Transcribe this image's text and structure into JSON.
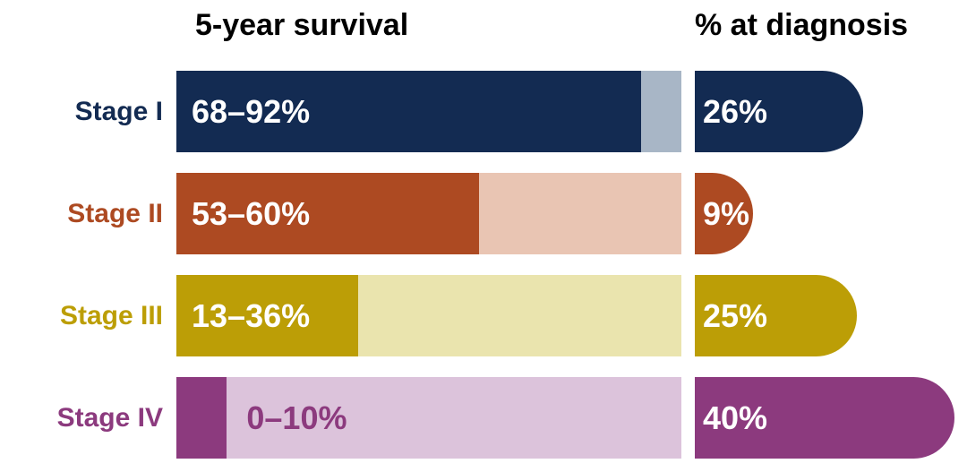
{
  "header": {
    "survival_title": "5-year survival",
    "diagnosis_title": "% at diagnosis"
  },
  "rows": [
    {
      "label": "Stage I",
      "survival_label": "68–92%",
      "survival_low": 68,
      "survival_high": 92,
      "diagnosis_label": "26%",
      "diagnosis_pct": 26,
      "solid_color": "#132b52",
      "light_color": "#a8b6c6",
      "value_text_position": "solid"
    },
    {
      "label": "Stage II",
      "survival_label": "53–60%",
      "survival_low": 53,
      "survival_high": 60,
      "diagnosis_label": "9%",
      "diagnosis_pct": 9,
      "solid_color": "#ad4a22",
      "light_color": "#e9c5b3",
      "value_text_position": "solid"
    },
    {
      "label": "Stage III",
      "survival_label": "13–36%",
      "survival_low": 13,
      "survival_high": 36,
      "diagnosis_label": "25%",
      "diagnosis_pct": 25,
      "solid_color": "#bc9e06",
      "light_color": "#eae4ae",
      "value_text_position": "solid"
    },
    {
      "label": "Stage IV",
      "survival_label": "0–10%",
      "survival_low": 0,
      "survival_high": 10,
      "diagnosis_label": "40%",
      "diagnosis_pct": 40,
      "solid_color": "#8c3a7e",
      "light_color": "#dcc3db",
      "value_text_position": "light"
    }
  ],
  "chart_data": {
    "type": "bar",
    "orientation": "horizontal",
    "categories": [
      "Stage I",
      "Stage II",
      "Stage III",
      "Stage IV"
    ],
    "series": [
      {
        "name": "5-year survival",
        "kind": "range",
        "low": [
          68,
          53,
          13,
          0
        ],
        "high": [
          92,
          60,
          36,
          10
        ],
        "labels": [
          "68–92%",
          "53–60%",
          "13–36%",
          "0–10%"
        ]
      },
      {
        "name": "% at diagnosis",
        "kind": "value",
        "values": [
          26,
          9,
          25,
          40
        ],
        "labels": [
          "26%",
          "9%",
          "25%",
          "40%"
        ]
      }
    ],
    "survival_xlim": [
      0,
      100
    ],
    "diagnosis_xlim": [
      0,
      42
    ],
    "grid": false,
    "legend": false,
    "colors": {
      "stage1_solid": "#132b52",
      "stage1_light": "#a8b6c6",
      "stage2_solid": "#ad4a22",
      "stage2_light": "#e9c5b3",
      "stage3_solid": "#bc9e06",
      "stage3_light": "#eae4ae",
      "stage4_solid": "#8c3a7e",
      "stage4_light": "#dcc3db",
      "value_text_on_solid": "#ffffff",
      "header_text": "#000000"
    }
  }
}
